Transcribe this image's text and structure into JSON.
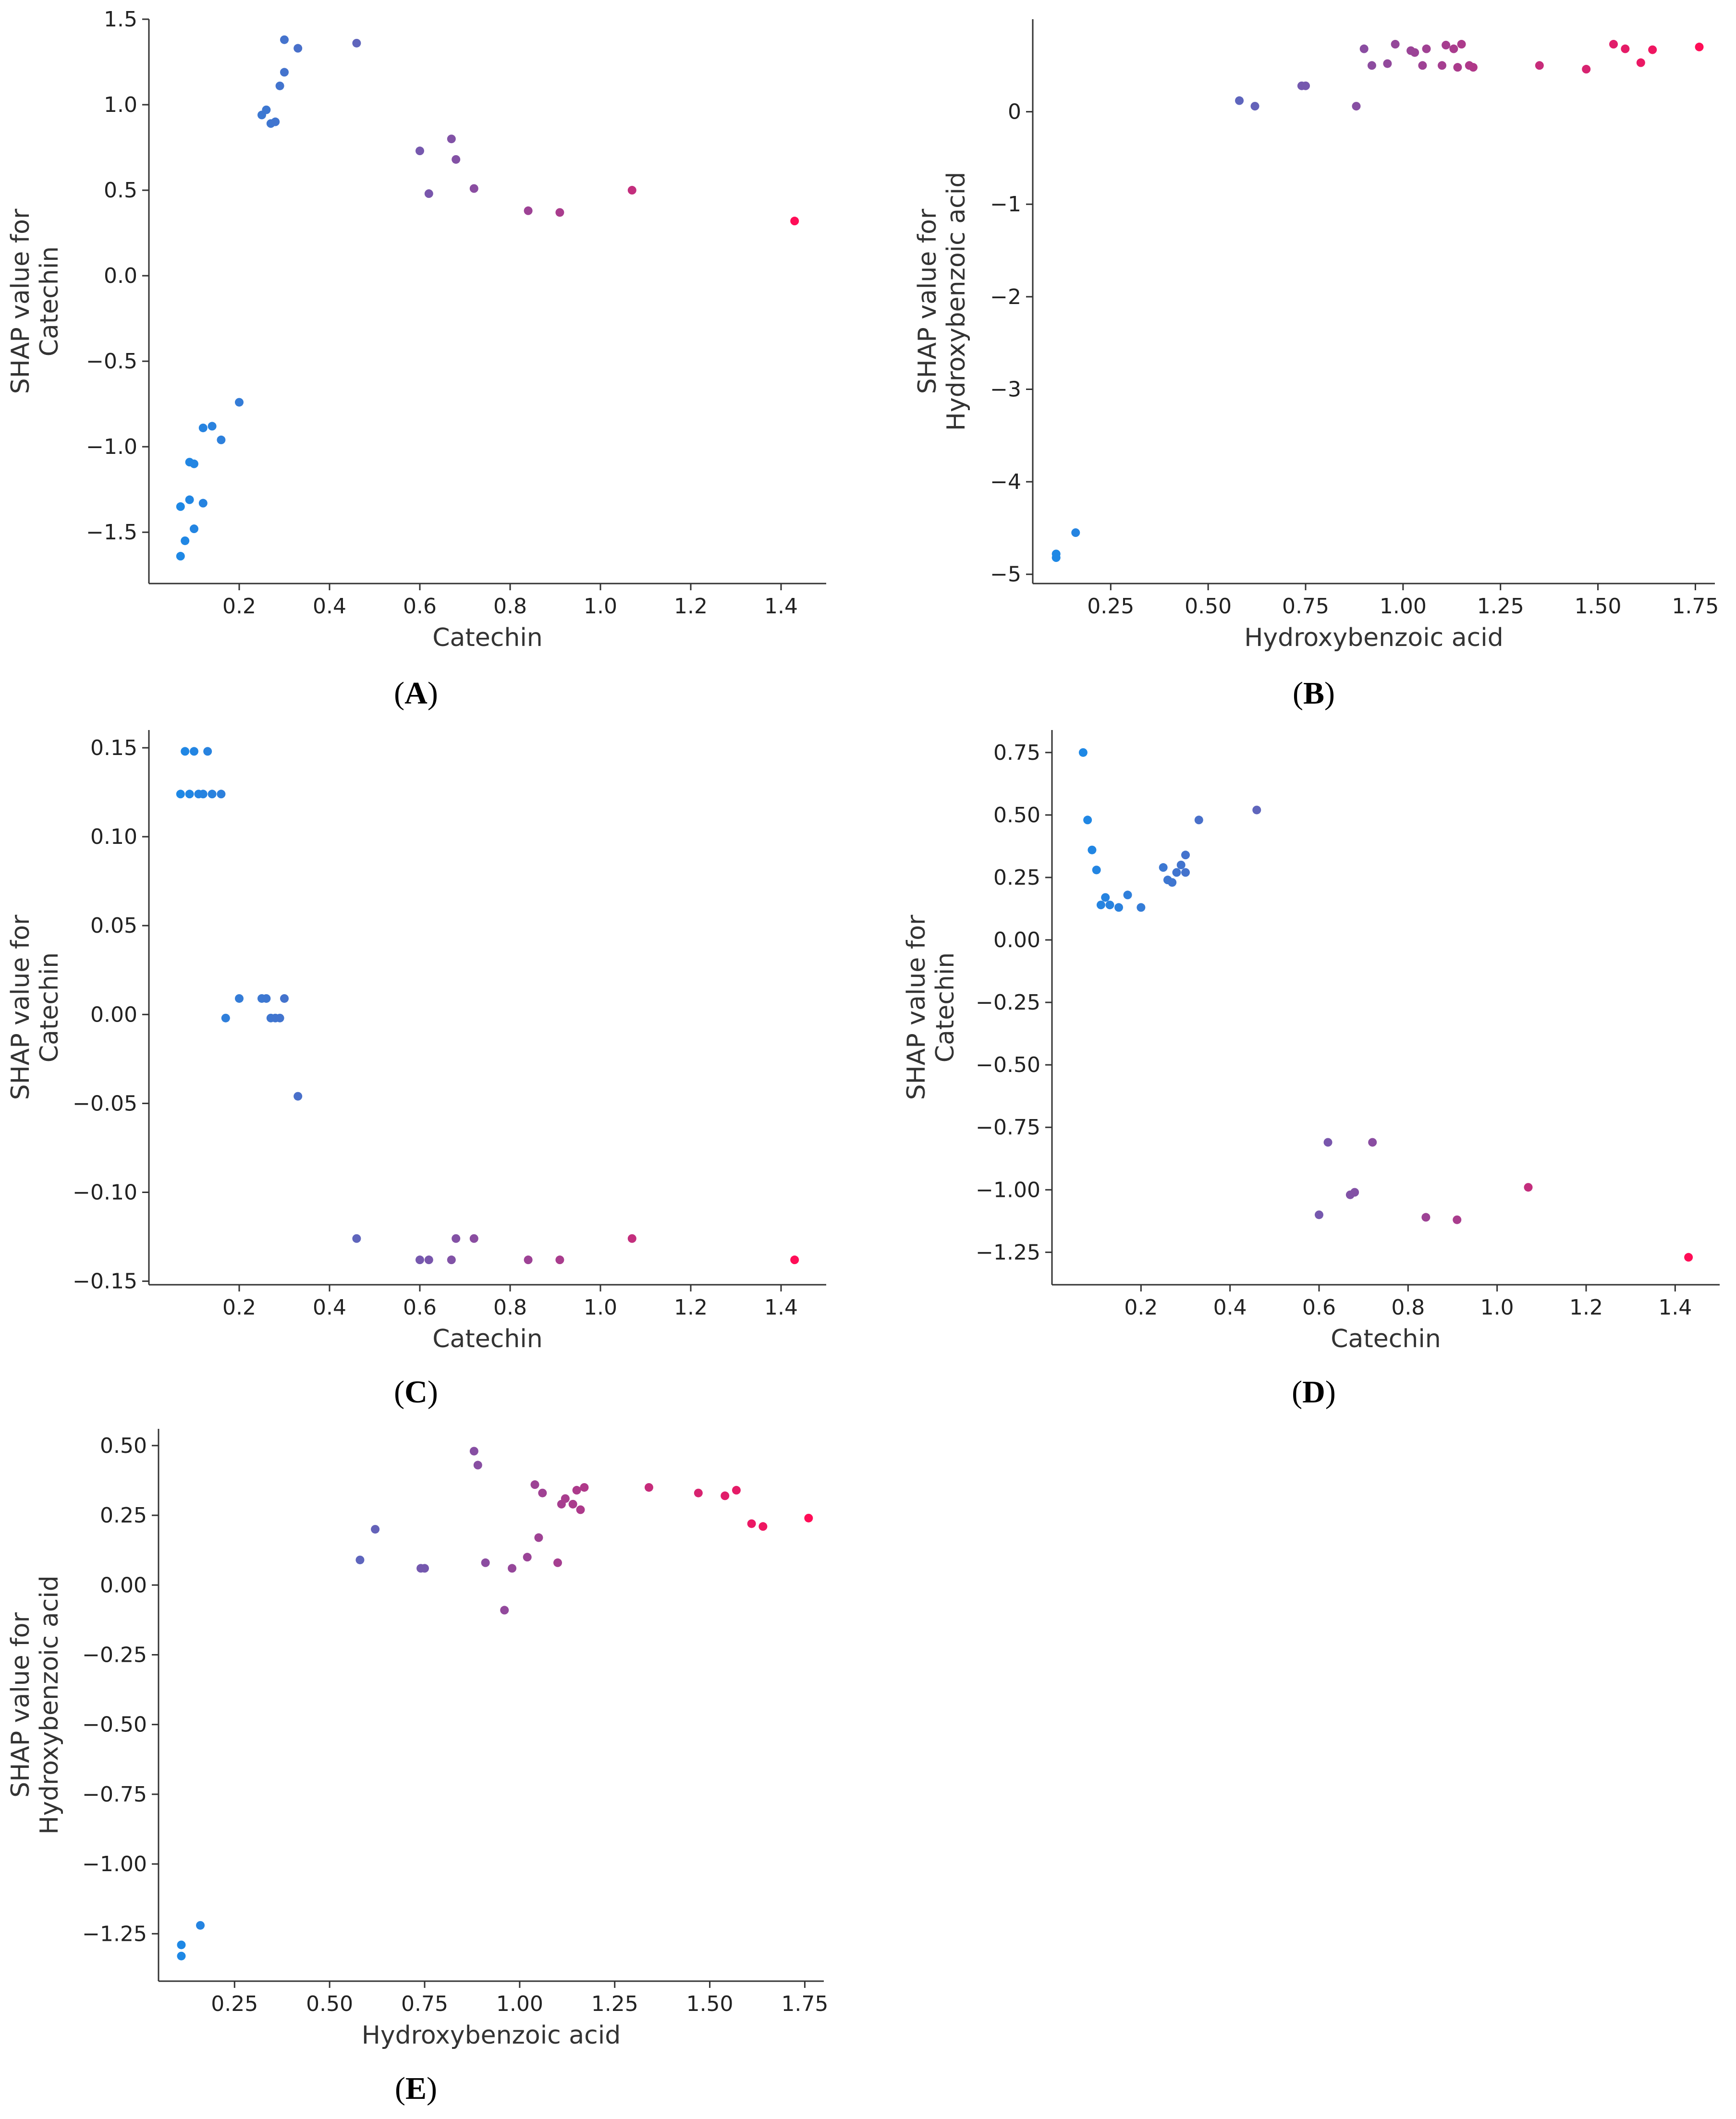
{
  "figure": {
    "colors": {
      "low": "#1e88e5",
      "high": "#ff0d57",
      "axis": "#333333",
      "text": "#222222"
    },
    "font_family": "DejaVu Sans"
  },
  "chart_data": [
    {
      "id": "A",
      "type": "scatter",
      "panel_label": "A",
      "xlabel": "Catechin",
      "ylabel": [
        "SHAP value for",
        "Catechin"
      ],
      "xlim": [
        0.0,
        1.5
      ],
      "ylim": [
        -1.8,
        1.5
      ],
      "x_ticks": [
        0.2,
        0.4,
        0.6,
        0.8,
        1.0,
        1.2,
        1.4
      ],
      "x_tick_labels": [
        "0.2",
        "0.4",
        "0.6",
        "0.8",
        "1.0",
        "1.2",
        "1.4"
      ],
      "y_ticks": [
        -1.5,
        -1.0,
        -0.5,
        0.0,
        0.5,
        1.0,
        1.5
      ],
      "y_tick_labels": [
        "−1.5",
        "−1.0",
        "−0.5",
        "0.0",
        "0.5",
        "1.0",
        "1.5"
      ],
      "points": [
        [
          0.07,
          -1.64
        ],
        [
          0.07,
          -1.35
        ],
        [
          0.08,
          -1.55
        ],
        [
          0.09,
          -1.31
        ],
        [
          0.1,
          -1.48
        ],
        [
          0.12,
          -1.33
        ],
        [
          0.09,
          -1.09
        ],
        [
          0.1,
          -1.1
        ],
        [
          0.12,
          -0.89
        ],
        [
          0.14,
          -0.88
        ],
        [
          0.16,
          -0.96
        ],
        [
          0.2,
          -0.74
        ],
        [
          0.25,
          0.94
        ],
        [
          0.26,
          0.97
        ],
        [
          0.27,
          0.89
        ],
        [
          0.28,
          0.9
        ],
        [
          0.29,
          1.11
        ],
        [
          0.3,
          1.19
        ],
        [
          0.3,
          1.38
        ],
        [
          0.33,
          1.33
        ],
        [
          0.46,
          1.36
        ],
        [
          0.6,
          0.73
        ],
        [
          0.62,
          0.48
        ],
        [
          0.67,
          0.8
        ],
        [
          0.68,
          0.68
        ],
        [
          0.72,
          0.51
        ],
        [
          0.84,
          0.38
        ],
        [
          0.91,
          0.37
        ],
        [
          1.07,
          0.5
        ],
        [
          1.43,
          0.32
        ]
      ],
      "color_by": [
        0.07,
        0.07,
        0.08,
        0.09,
        0.1,
        0.12,
        0.09,
        0.1,
        0.12,
        0.14,
        0.16,
        0.2,
        0.25,
        0.26,
        0.27,
        0.28,
        0.29,
        0.3,
        0.3,
        0.33,
        0.46,
        0.6,
        0.62,
        0.67,
        0.68,
        0.72,
        0.84,
        0.91,
        1.07,
        1.43
      ],
      "color_range": [
        0.07,
        1.43
      ]
    },
    {
      "id": "B",
      "type": "scatter",
      "panel_label": "B",
      "xlabel": "Hydroxybenzoic acid",
      "ylabel": [
        "SHAP value for",
        "Hydroxybenzoic acid"
      ],
      "xlim": [
        0.05,
        1.8
      ],
      "ylim": [
        -5.1,
        1.0
      ],
      "x_ticks": [
        0.25,
        0.5,
        0.75,
        1.0,
        1.25,
        1.5,
        1.75
      ],
      "x_tick_labels": [
        "0.25",
        "0.50",
        "0.75",
        "1.00",
        "1.25",
        "1.50",
        "1.75"
      ],
      "y_ticks": [
        -5,
        -4,
        -3,
        -2,
        -1,
        0
      ],
      "y_tick_labels": [
        "−5",
        "−4",
        "−3",
        "−2",
        "−1",
        "0"
      ],
      "points": [
        [
          0.11,
          -4.82
        ],
        [
          0.11,
          -4.78
        ],
        [
          0.16,
          -4.55
        ],
        [
          0.58,
          0.12
        ],
        [
          0.62,
          0.06
        ],
        [
          0.74,
          0.28
        ],
        [
          0.75,
          0.28
        ],
        [
          0.88,
          0.06
        ],
        [
          0.9,
          0.68
        ],
        [
          0.92,
          0.5
        ],
        [
          0.96,
          0.52
        ],
        [
          0.98,
          0.73
        ],
        [
          1.02,
          0.66
        ],
        [
          1.03,
          0.64
        ],
        [
          1.05,
          0.5
        ],
        [
          1.06,
          0.68
        ],
        [
          1.1,
          0.5
        ],
        [
          1.11,
          0.72
        ],
        [
          1.13,
          0.68
        ],
        [
          1.14,
          0.48
        ],
        [
          1.15,
          0.73
        ],
        [
          1.17,
          0.5
        ],
        [
          1.18,
          0.48
        ],
        [
          1.35,
          0.5
        ],
        [
          1.47,
          0.46
        ],
        [
          1.54,
          0.73
        ],
        [
          1.57,
          0.68
        ],
        [
          1.61,
          0.53
        ],
        [
          1.64,
          0.67
        ],
        [
          1.76,
          0.7
        ]
      ],
      "color_by": [
        0.11,
        0.11,
        0.16,
        0.58,
        0.62,
        0.74,
        0.75,
        0.88,
        0.9,
        0.92,
        0.96,
        0.98,
        1.02,
        1.03,
        1.05,
        1.06,
        1.1,
        1.11,
        1.13,
        1.14,
        1.15,
        1.17,
        1.18,
        1.35,
        1.47,
        1.54,
        1.57,
        1.61,
        1.64,
        1.76
      ],
      "color_range": [
        0.11,
        1.76
      ]
    },
    {
      "id": "C",
      "type": "scatter",
      "panel_label": "C",
      "xlabel": "Catechin",
      "ylabel": [
        "SHAP value for",
        "Catechin"
      ],
      "xlim": [
        0.0,
        1.5
      ],
      "ylim": [
        -0.152,
        0.16
      ],
      "x_ticks": [
        0.2,
        0.4,
        0.6,
        0.8,
        1.0,
        1.2,
        1.4
      ],
      "x_tick_labels": [
        "0.2",
        "0.4",
        "0.6",
        "0.8",
        "1.0",
        "1.2",
        "1.4"
      ],
      "y_ticks": [
        -0.15,
        -0.1,
        -0.05,
        0.0,
        0.05,
        0.1,
        0.15
      ],
      "y_tick_labels": [
        "−0.15",
        "−0.10",
        "−0.05",
        "0.00",
        "0.05",
        "0.10",
        "0.15"
      ],
      "points": [
        [
          0.07,
          0.124
        ],
        [
          0.08,
          0.148
        ],
        [
          0.09,
          0.124
        ],
        [
          0.1,
          0.148
        ],
        [
          0.11,
          0.124
        ],
        [
          0.12,
          0.124
        ],
        [
          0.13,
          0.148
        ],
        [
          0.14,
          0.124
        ],
        [
          0.16,
          0.124
        ],
        [
          0.17,
          -0.002
        ],
        [
          0.2,
          0.009
        ],
        [
          0.25,
          0.009
        ],
        [
          0.26,
          0.009
        ],
        [
          0.27,
          -0.002
        ],
        [
          0.28,
          -0.002
        ],
        [
          0.29,
          -0.002
        ],
        [
          0.3,
          0.009
        ],
        [
          0.33,
          -0.046
        ],
        [
          0.46,
          -0.126
        ],
        [
          0.6,
          -0.138
        ],
        [
          0.62,
          -0.138
        ],
        [
          0.67,
          -0.138
        ],
        [
          0.68,
          -0.126
        ],
        [
          0.72,
          -0.126
        ],
        [
          0.84,
          -0.138
        ],
        [
          0.91,
          -0.138
        ],
        [
          1.07,
          -0.126
        ],
        [
          1.43,
          -0.138
        ]
      ],
      "color_by": [
        0.07,
        0.08,
        0.09,
        0.1,
        0.11,
        0.12,
        0.13,
        0.14,
        0.16,
        0.17,
        0.2,
        0.25,
        0.26,
        0.27,
        0.28,
        0.29,
        0.3,
        0.33,
        0.46,
        0.6,
        0.62,
        0.67,
        0.68,
        0.72,
        0.84,
        0.91,
        1.07,
        1.43
      ],
      "color_range": [
        0.07,
        1.43
      ]
    },
    {
      "id": "D",
      "type": "scatter",
      "panel_label": "D",
      "xlabel": "Catechin",
      "ylabel": [
        "SHAP value for",
        "Catechin"
      ],
      "xlim": [
        0.0,
        1.5
      ],
      "ylim": [
        -1.38,
        0.84
      ],
      "x_ticks": [
        0.2,
        0.4,
        0.6,
        0.8,
        1.0,
        1.2,
        1.4
      ],
      "x_tick_labels": [
        "0.2",
        "0.4",
        "0.6",
        "0.8",
        "1.0",
        "1.2",
        "1.4"
      ],
      "y_ticks": [
        -1.25,
        -1.0,
        -0.75,
        -0.5,
        -0.25,
        0.0,
        0.25,
        0.5,
        0.75
      ],
      "y_tick_labels": [
        "−1.25",
        "−1.00",
        "−0.75",
        "−0.50",
        "−0.25",
        "0.00",
        "0.25",
        "0.50",
        "0.75"
      ],
      "points": [
        [
          0.07,
          0.75
        ],
        [
          0.08,
          0.48
        ],
        [
          0.09,
          0.36
        ],
        [
          0.1,
          0.28
        ],
        [
          0.11,
          0.14
        ],
        [
          0.12,
          0.17
        ],
        [
          0.13,
          0.14
        ],
        [
          0.15,
          0.13
        ],
        [
          0.17,
          0.18
        ],
        [
          0.2,
          0.13
        ],
        [
          0.25,
          0.29
        ],
        [
          0.26,
          0.24
        ],
        [
          0.27,
          0.23
        ],
        [
          0.28,
          0.27
        ],
        [
          0.29,
          0.3
        ],
        [
          0.3,
          0.34
        ],
        [
          0.3,
          0.27
        ],
        [
          0.33,
          0.48
        ],
        [
          0.46,
          0.52
        ],
        [
          0.6,
          -1.1
        ],
        [
          0.62,
          -0.81
        ],
        [
          0.67,
          -1.02
        ],
        [
          0.68,
          -1.01
        ],
        [
          0.72,
          -0.81
        ],
        [
          0.84,
          -1.11
        ],
        [
          0.91,
          -1.12
        ],
        [
          1.07,
          -0.99
        ],
        [
          1.43,
          -1.27
        ]
      ],
      "color_by": [
        0.07,
        0.08,
        0.09,
        0.1,
        0.11,
        0.12,
        0.13,
        0.15,
        0.17,
        0.2,
        0.25,
        0.26,
        0.27,
        0.28,
        0.29,
        0.3,
        0.3,
        0.33,
        0.46,
        0.6,
        0.62,
        0.67,
        0.68,
        0.72,
        0.84,
        0.91,
        1.07,
        1.43
      ],
      "color_range": [
        0.07,
        1.43
      ]
    },
    {
      "id": "E",
      "type": "scatter",
      "panel_label": "E",
      "xlabel": "Hydroxybenzoic acid",
      "ylabel": [
        "SHAP value for",
        "Hydroxybenzoic acid"
      ],
      "xlim": [
        0.05,
        1.8
      ],
      "ylim": [
        -1.42,
        0.56
      ],
      "x_ticks": [
        0.25,
        0.5,
        0.75,
        1.0,
        1.25,
        1.5,
        1.75
      ],
      "x_tick_labels": [
        "0.25",
        "0.50",
        "0.75",
        "1.00",
        "1.25",
        "1.50",
        "1.75"
      ],
      "y_ticks": [
        -1.25,
        -1.0,
        -0.75,
        -0.5,
        -0.25,
        0.0,
        0.25,
        0.5
      ],
      "y_tick_labels": [
        "−1.25",
        "−1.00",
        "−0.75",
        "−0.50",
        "−0.25",
        "0.00",
        "0.25",
        "0.50"
      ],
      "points": [
        [
          0.11,
          -1.33
        ],
        [
          0.11,
          -1.29
        ],
        [
          0.16,
          -1.22
        ],
        [
          0.58,
          0.09
        ],
        [
          0.62,
          0.2
        ],
        [
          0.74,
          0.06
        ],
        [
          0.75,
          0.06
        ],
        [
          0.88,
          0.48
        ],
        [
          0.89,
          0.43
        ],
        [
          0.91,
          0.08
        ],
        [
          0.96,
          -0.09
        ],
        [
          0.98,
          0.06
        ],
        [
          1.02,
          0.1
        ],
        [
          1.04,
          0.36
        ],
        [
          1.05,
          0.17
        ],
        [
          1.06,
          0.33
        ],
        [
          1.1,
          0.08
        ],
        [
          1.11,
          0.29
        ],
        [
          1.12,
          0.31
        ],
        [
          1.14,
          0.29
        ],
        [
          1.15,
          0.34
        ],
        [
          1.16,
          0.27
        ],
        [
          1.17,
          0.35
        ],
        [
          1.34,
          0.35
        ],
        [
          1.47,
          0.33
        ],
        [
          1.54,
          0.32
        ],
        [
          1.57,
          0.34
        ],
        [
          1.61,
          0.22
        ],
        [
          1.64,
          0.21
        ],
        [
          1.76,
          0.24
        ]
      ],
      "color_by": [
        0.11,
        0.11,
        0.16,
        0.58,
        0.62,
        0.74,
        0.75,
        0.88,
        0.89,
        0.91,
        0.96,
        0.98,
        1.02,
        1.04,
        1.05,
        1.06,
        1.1,
        1.11,
        1.12,
        1.14,
        1.15,
        1.16,
        1.17,
        1.34,
        1.47,
        1.54,
        1.57,
        1.61,
        1.64,
        1.76
      ],
      "color_range": [
        0.11,
        1.76
      ]
    }
  ]
}
